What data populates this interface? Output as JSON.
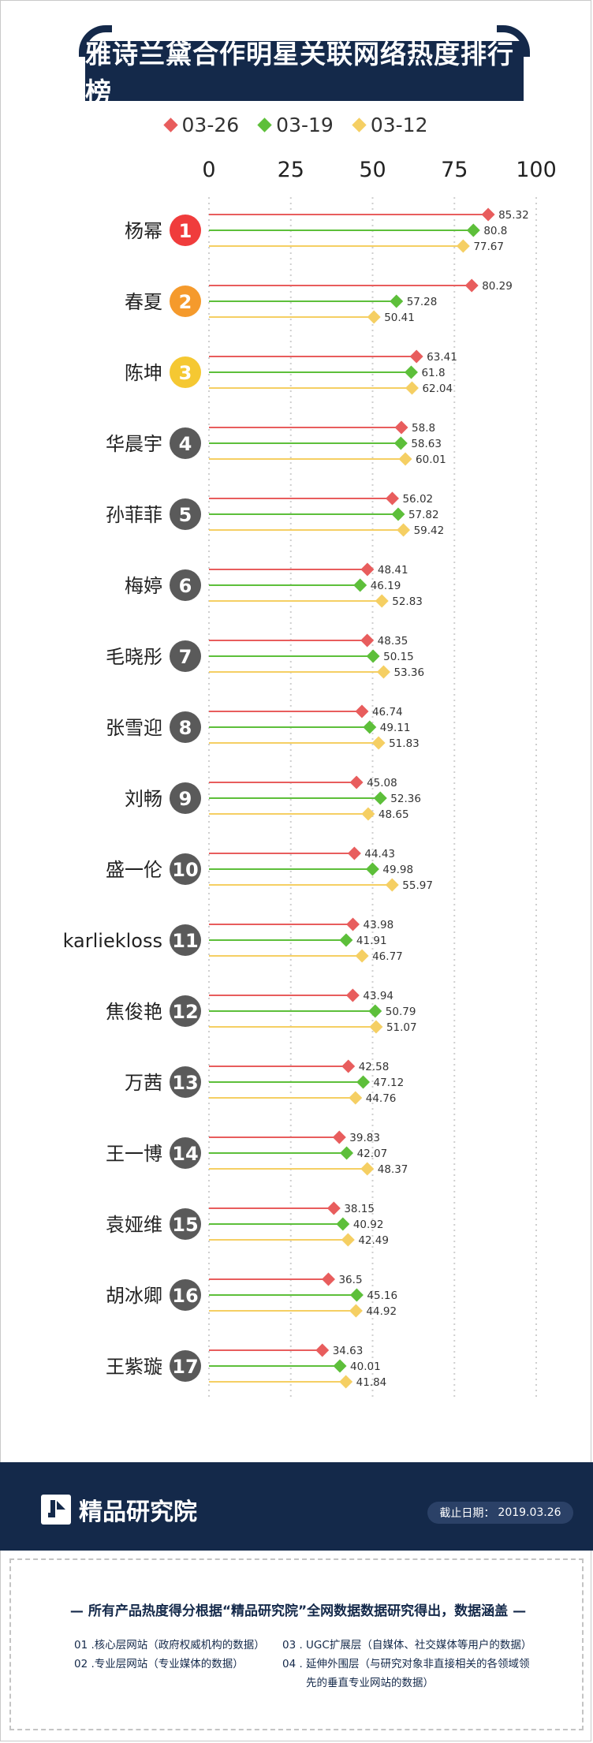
{
  "header": {
    "title": "雅诗兰黛合作明星关联网络热度排行榜"
  },
  "legend": [
    {
      "label": "03-26",
      "color": "#e85d5d"
    },
    {
      "label": "03-19",
      "color": "#5dbf3a"
    },
    {
      "label": "03-12",
      "color": "#f5cf63"
    }
  ],
  "chart_data": {
    "type": "bar",
    "orientation": "horizontal",
    "xlim": [
      0,
      100
    ],
    "xticks": [
      "0",
      "25",
      "50",
      "75",
      "100"
    ],
    "grid": true,
    "legend_position": "top",
    "categories": [
      "杨幂",
      "春夏",
      "陈坤",
      "华晨宇",
      "孙菲菲",
      "梅婷",
      "毛晓彤",
      "张雪迎",
      "刘畅",
      "盛一伦",
      "karliekloss",
      "焦俊艳",
      "万茜",
      "王一博",
      "袁娅维",
      "胡冰卿",
      "王紫璇"
    ],
    "ranks": [
      "1",
      "2",
      "3",
      "4",
      "5",
      "6",
      "7",
      "8",
      "9",
      "10",
      "11",
      "12",
      "13",
      "14",
      "15",
      "16",
      "17"
    ],
    "rank_colors": [
      "#f03c3c",
      "#f59a2c",
      "#f5c832",
      "#5a5a5a",
      "#5a5a5a",
      "#5a5a5a",
      "#5a5a5a",
      "#5a5a5a",
      "#5a5a5a",
      "#5a5a5a",
      "#5a5a5a",
      "#5a5a5a",
      "#5a5a5a",
      "#5a5a5a",
      "#5a5a5a",
      "#5a5a5a",
      "#5a5a5a"
    ],
    "series": [
      {
        "name": "03-26",
        "color": "#e85d5d",
        "values": [
          85.32,
          80.29,
          63.41,
          58.8,
          56.02,
          48.41,
          48.35,
          46.74,
          45.08,
          44.43,
          43.98,
          43.94,
          42.58,
          39.83,
          38.15,
          36.5,
          34.63
        ]
      },
      {
        "name": "03-19",
        "color": "#5dbf3a",
        "values": [
          80.8,
          57.28,
          61.8,
          58.63,
          57.82,
          46.19,
          50.15,
          49.11,
          52.36,
          49.98,
          41.91,
          50.79,
          47.12,
          42.07,
          40.92,
          45.16,
          40.01
        ]
      },
      {
        "name": "03-12",
        "color": "#f5cf63",
        "values": [
          77.67,
          50.41,
          62.04,
          60.01,
          59.42,
          52.83,
          53.36,
          51.83,
          48.65,
          55.97,
          46.77,
          51.07,
          44.76,
          48.37,
          42.49,
          44.92,
          41.84
        ]
      }
    ]
  },
  "footer": {
    "brand": "精品研究院",
    "date_label": "截止日期：",
    "date_value": "2019.03.26"
  },
  "notes": {
    "title": "— 所有产品热度得分根据“精品研究院”全网数据数据研究得出，数据涵盖 —",
    "item1": "01 .核心层网站（政府权威机构的数据）",
    "item2": "02 .专业层网站（专业媒体的数据）",
    "item3": "03 . UGC扩展层（自媒体、社交媒体等用户的数据）",
    "item4a": "04 . 延伸外围层（与研究对象非直接相关的各领域领",
    "item4b": "先的垂直专业网站的数据）"
  }
}
